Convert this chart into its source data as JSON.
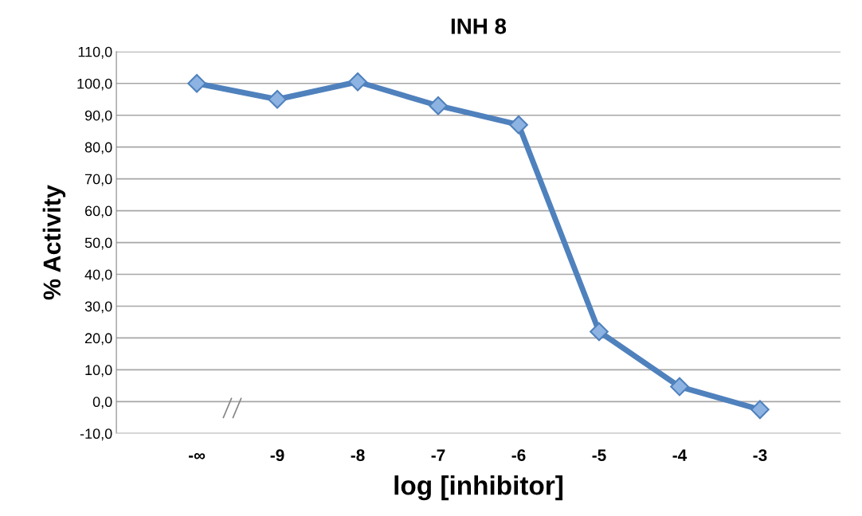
{
  "chart_data": {
    "type": "line",
    "title": "INH 8",
    "xlabel": "log [inhibitor]",
    "ylabel": "% Activity",
    "categories": [
      "-∞",
      "-9",
      "-8",
      "-7",
      "-6",
      "-5",
      "-4",
      "-3"
    ],
    "series": [
      {
        "color": "#4f81bd",
        "values": [
          100.0,
          95.0,
          100.5,
          93.0,
          87.0,
          22.0,
          4.7,
          -2.5
        ]
      }
    ],
    "ylim": [
      -10,
      110
    ],
    "yticks": [
      {
        "value": -10,
        "label": "-10,0"
      },
      {
        "value": 0,
        "label": "0,0"
      },
      {
        "value": 10,
        "label": "10,0"
      },
      {
        "value": 20,
        "label": "20,0"
      },
      {
        "value": 30,
        "label": "30,0"
      },
      {
        "value": 40,
        "label": "40,0"
      },
      {
        "value": 50,
        "label": "50,0"
      },
      {
        "value": 60,
        "label": "60,0"
      },
      {
        "value": 70,
        "label": "70,0"
      },
      {
        "value": 80,
        "label": "80,0"
      },
      {
        "value": 90,
        "label": "90,0"
      },
      {
        "value": 100,
        "label": "100,0"
      },
      {
        "value": 110,
        "label": "110,0"
      }
    ],
    "grid": "y",
    "marker": "diamond",
    "line_style": "solid",
    "legend": false
  }
}
